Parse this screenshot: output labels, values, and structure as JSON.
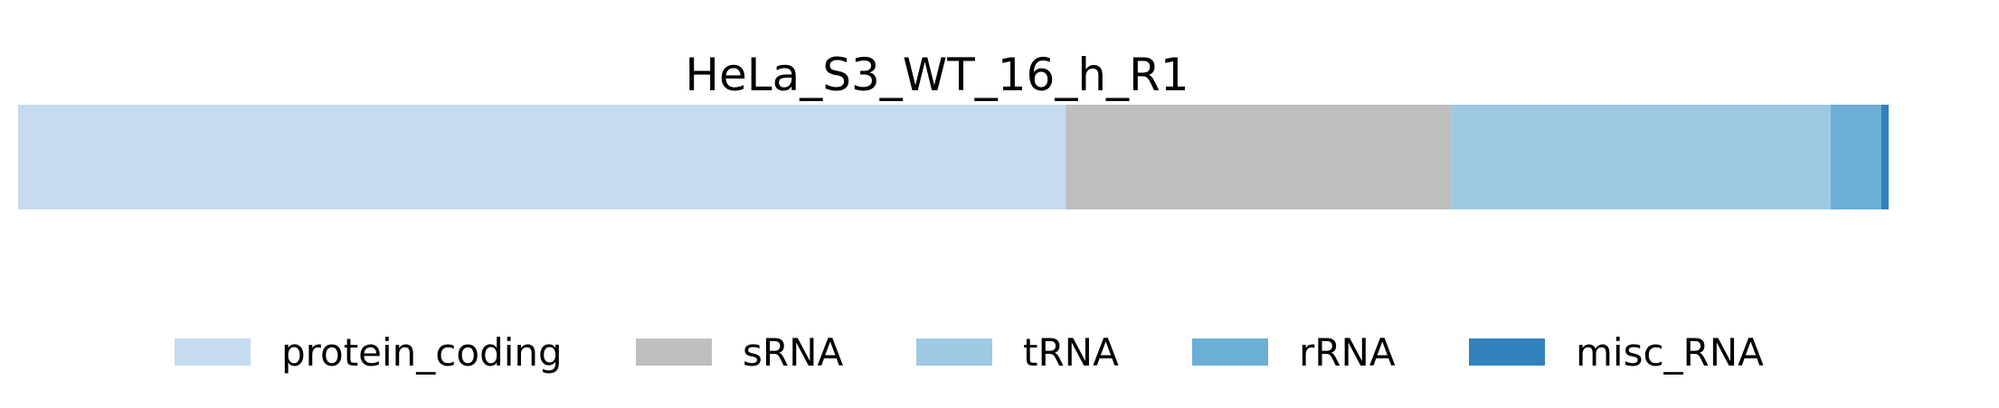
{
  "chart_data": {
    "type": "bar",
    "orientation": "horizontal",
    "stacked": true,
    "normalized": true,
    "title": "HeLa_S3_WT_16_h_R1",
    "xlabel": "",
    "ylabel": "",
    "axes_visible": false,
    "grid": false,
    "legend_position": "bottom",
    "series": [
      {
        "name": "protein_coding",
        "value": 0.56,
        "color": "#c6dbef"
      },
      {
        "name": "sRNA",
        "value": 0.206,
        "color": "#bfbfbf"
      },
      {
        "name": "tRNA",
        "value": 0.203,
        "color": "#9ecae1"
      },
      {
        "name": "rRNA",
        "value": 0.027,
        "color": "#6baed6"
      },
      {
        "name": "misc_RNA",
        "value": 0.004,
        "color": "#3182bd"
      }
    ]
  }
}
